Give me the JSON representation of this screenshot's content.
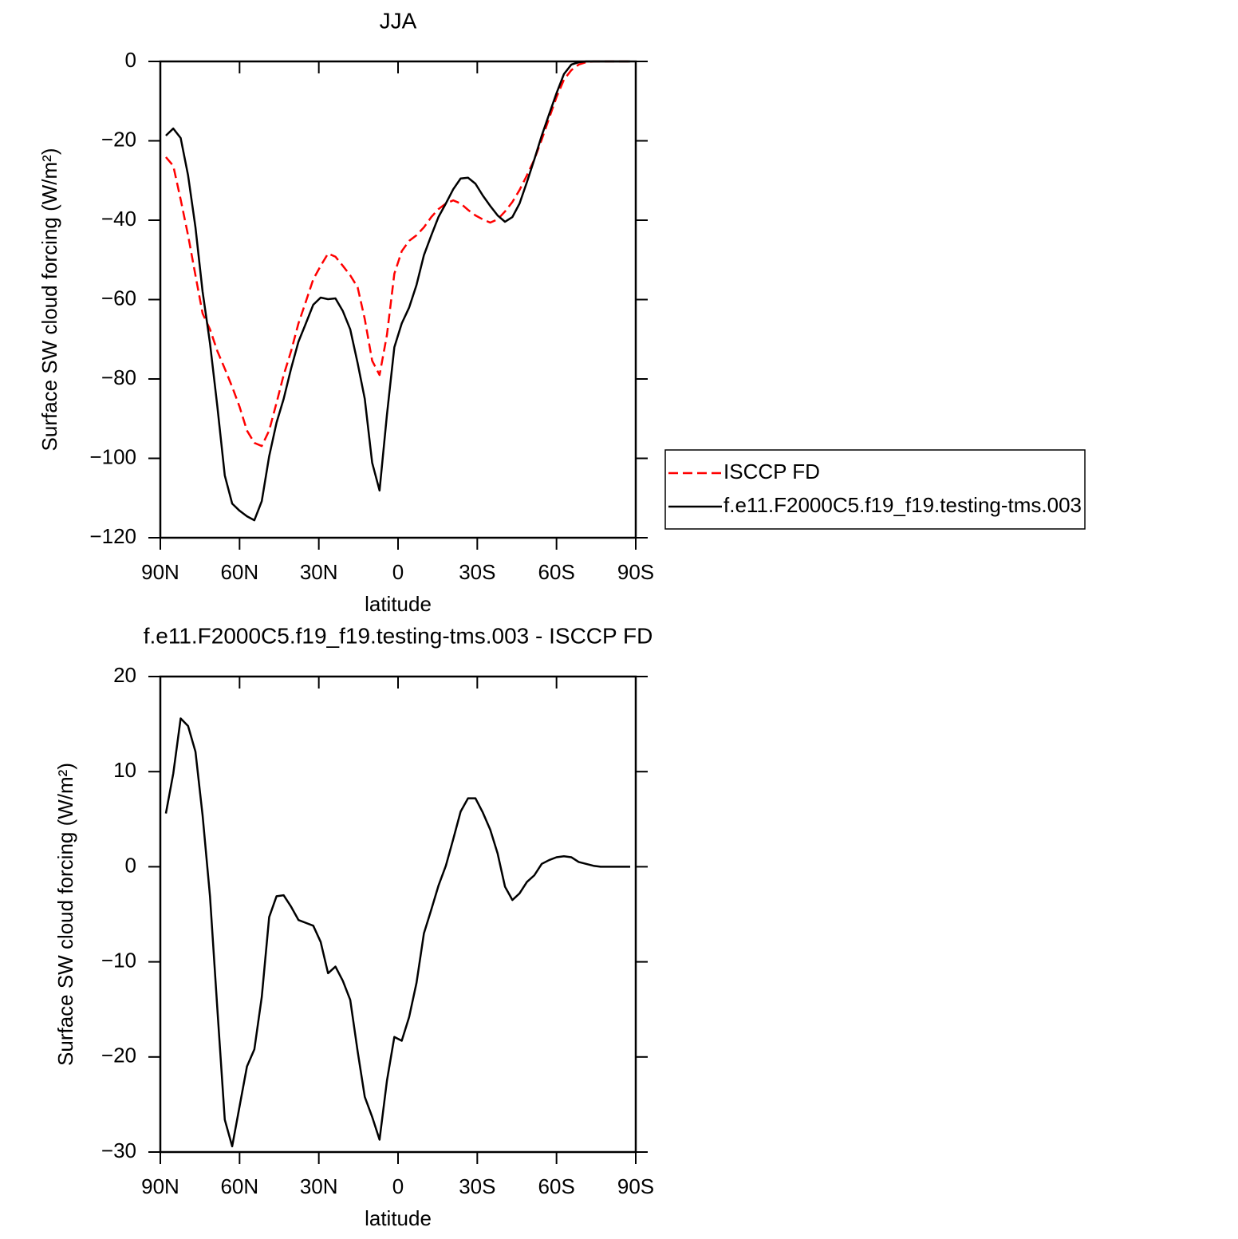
{
  "chart_data": [
    {
      "type": "line",
      "title": "JJA",
      "xlabel": "latitude",
      "ylabel": "Surface SW cloud forcing (W/m²)",
      "x": [
        87.9,
        85.1,
        82.3,
        79.5,
        76.7,
        74.0,
        71.2,
        68.4,
        65.6,
        62.8,
        60.0,
        57.2,
        54.4,
        51.6,
        48.8,
        46.0,
        43.3,
        40.5,
        37.7,
        34.9,
        32.1,
        29.3,
        26.5,
        23.7,
        20.9,
        18.1,
        15.3,
        12.6,
        9.8,
        7.0,
        4.2,
        1.4,
        -1.4,
        -4.2,
        -7.0,
        -9.8,
        -12.6,
        -15.3,
        -18.1,
        -20.9,
        -23.7,
        -26.5,
        -29.3,
        -32.1,
        -34.9,
        -37.7,
        -40.5,
        -43.3,
        -46.0,
        -48.8,
        -51.6,
        -54.4,
        -57.2,
        -60.0,
        -62.8,
        -65.6,
        -68.4,
        -71.2,
        -74.0,
        -76.7,
        -79.5,
        -82.3,
        -85.1,
        -87.9
      ],
      "xlim": [
        90,
        -90
      ],
      "xticks": [
        {
          "value": 90,
          "label": "90N"
        },
        {
          "value": 60,
          "label": "60N"
        },
        {
          "value": 30,
          "label": "30N"
        },
        0,
        {
          "value": -30,
          "label": "30S"
        },
        {
          "value": -60,
          "label": "60S"
        },
        {
          "value": -90,
          "label": "90S"
        }
      ],
      "ylim": [
        -120,
        0
      ],
      "yticks": [
        0,
        {
          "value": -20,
          "label": "−20"
        },
        {
          "value": -40,
          "label": "−40"
        },
        {
          "value": -60,
          "label": "−60"
        },
        {
          "value": -80,
          "label": "−80"
        },
        {
          "value": -100,
          "label": "−100"
        },
        {
          "value": -120,
          "label": "−120"
        }
      ],
      "legend": "right",
      "series": [
        {
          "name": "ISCCP FD",
          "color": "#ff0000",
          "dashed": true,
          "values": [
            -24.1,
            -26.3,
            -34.8,
            -43.8,
            -53.9,
            -63.5,
            -67.5,
            -73,
            -77.4,
            -82,
            -87,
            -93,
            -96.1,
            -96.9,
            -93,
            -86,
            -79,
            -73,
            -66,
            -60.5,
            -54.9,
            -51.5,
            -48.4,
            -49.2,
            -51.5,
            -53.9,
            -56.9,
            -64.9,
            -75.4,
            -79,
            -68.9,
            -53.5,
            -47.8,
            -45.2,
            -43.8,
            -41.8,
            -39.2,
            -37.2,
            -35.8,
            -35,
            -35.8,
            -37.4,
            -38.8,
            -39.8,
            -40.6,
            -39.8,
            -37.8,
            -35.4,
            -32.4,
            -28.7,
            -24.7,
            -19.7,
            -14.3,
            -9,
            -4.6,
            -2.2,
            -0.8,
            -0.2,
            0,
            0,
            0,
            0,
            0,
            0
          ]
        },
        {
          "name": "f.e11.F2000C5.f19_f19.testing-tms.003",
          "color": "#000000",
          "dashed": false,
          "values": [
            -18.7,
            -16.9,
            -19.3,
            -28.7,
            -41.8,
            -58,
            -71,
            -87,
            -104.3,
            -111.4,
            -113.2,
            -114.6,
            -115.6,
            -110.8,
            -99.5,
            -91,
            -85,
            -77.4,
            -70.6,
            -66,
            -61.3,
            -59.5,
            -59.9,
            -59.7,
            -62.9,
            -67.5,
            -76,
            -85,
            -101.1,
            -108.1,
            -89,
            -72,
            -66,
            -62,
            -56.3,
            -48.8,
            -43.8,
            -39.2,
            -35.8,
            -32.2,
            -29.5,
            -29.3,
            -30.8,
            -33.8,
            -36.4,
            -38.8,
            -40.4,
            -39.2,
            -35.8,
            -30.4,
            -24.7,
            -18.7,
            -13.3,
            -8,
            -3.2,
            -0.8,
            -0.2,
            0,
            0,
            0,
            0,
            0,
            0,
            0
          ]
        }
      ]
    },
    {
      "type": "line",
      "title": "f.e11.F2000C5.f19_f19.testing-tms.003 - ISCCP FD",
      "xlabel": "latitude",
      "ylabel": "Surface SW cloud forcing (W/m²)",
      "x": [
        87.9,
        85.1,
        82.3,
        79.5,
        76.7,
        74.0,
        71.2,
        68.4,
        65.6,
        62.8,
        60.0,
        57.2,
        54.4,
        51.6,
        48.8,
        46.0,
        43.3,
        40.5,
        37.7,
        34.9,
        32.1,
        29.3,
        26.5,
        23.7,
        20.9,
        18.1,
        15.3,
        12.6,
        9.8,
        7.0,
        4.2,
        1.4,
        -1.4,
        -4.2,
        -7.0,
        -9.8,
        -12.6,
        -15.3,
        -18.1,
        -20.9,
        -23.7,
        -26.5,
        -29.3,
        -32.1,
        -34.9,
        -37.7,
        -40.5,
        -43.3,
        -46.0,
        -48.8,
        -51.6,
        -54.4,
        -57.2,
        -60.0,
        -62.8,
        -65.6,
        -68.4,
        -71.2,
        -74.0,
        -76.7,
        -79.5,
        -82.3,
        -85.1,
        -87.9
      ],
      "xlim": [
        90,
        -90
      ],
      "xticks": [
        {
          "value": 90,
          "label": "90N"
        },
        {
          "value": 60,
          "label": "60N"
        },
        {
          "value": 30,
          "label": "30N"
        },
        0,
        {
          "value": -30,
          "label": "30S"
        },
        {
          "value": -60,
          "label": "60S"
        },
        {
          "value": -90,
          "label": "90S"
        }
      ],
      "ylim": [
        -30,
        20
      ],
      "yticks": [
        20,
        10,
        0,
        {
          "value": -10,
          "label": "−10"
        },
        {
          "value": -20,
          "label": "−20"
        },
        {
          "value": -30,
          "label": "−30"
        }
      ],
      "color": "#000000",
      "values": [
        5.6,
        9.8,
        15.6,
        14.8,
        12.1,
        5.4,
        -3.1,
        -15,
        -26.6,
        -29.4,
        -25.2,
        -21,
        -19.2,
        -13.7,
        -5.3,
        -3.1,
        -3,
        -4.2,
        -5.6,
        -5.9,
        -6.2,
        -7.9,
        -11.2,
        -10.5,
        -12,
        -14,
        -19.4,
        -24.2,
        -26.3,
        -28.7,
        -22.5,
        -17.9,
        -18.3,
        -15.8,
        -12.2,
        -7,
        -4.5,
        -2,
        0.1,
        2.9,
        5.8,
        7.2,
        7.2,
        5.7,
        3.9,
        1.4,
        -2.1,
        -3.5,
        -2.8,
        -1.6,
        -0.9,
        0.3,
        0.7,
        1,
        1.1,
        1,
        0.5,
        0.3,
        0.1,
        0,
        0,
        0,
        0,
        0
      ]
    }
  ]
}
